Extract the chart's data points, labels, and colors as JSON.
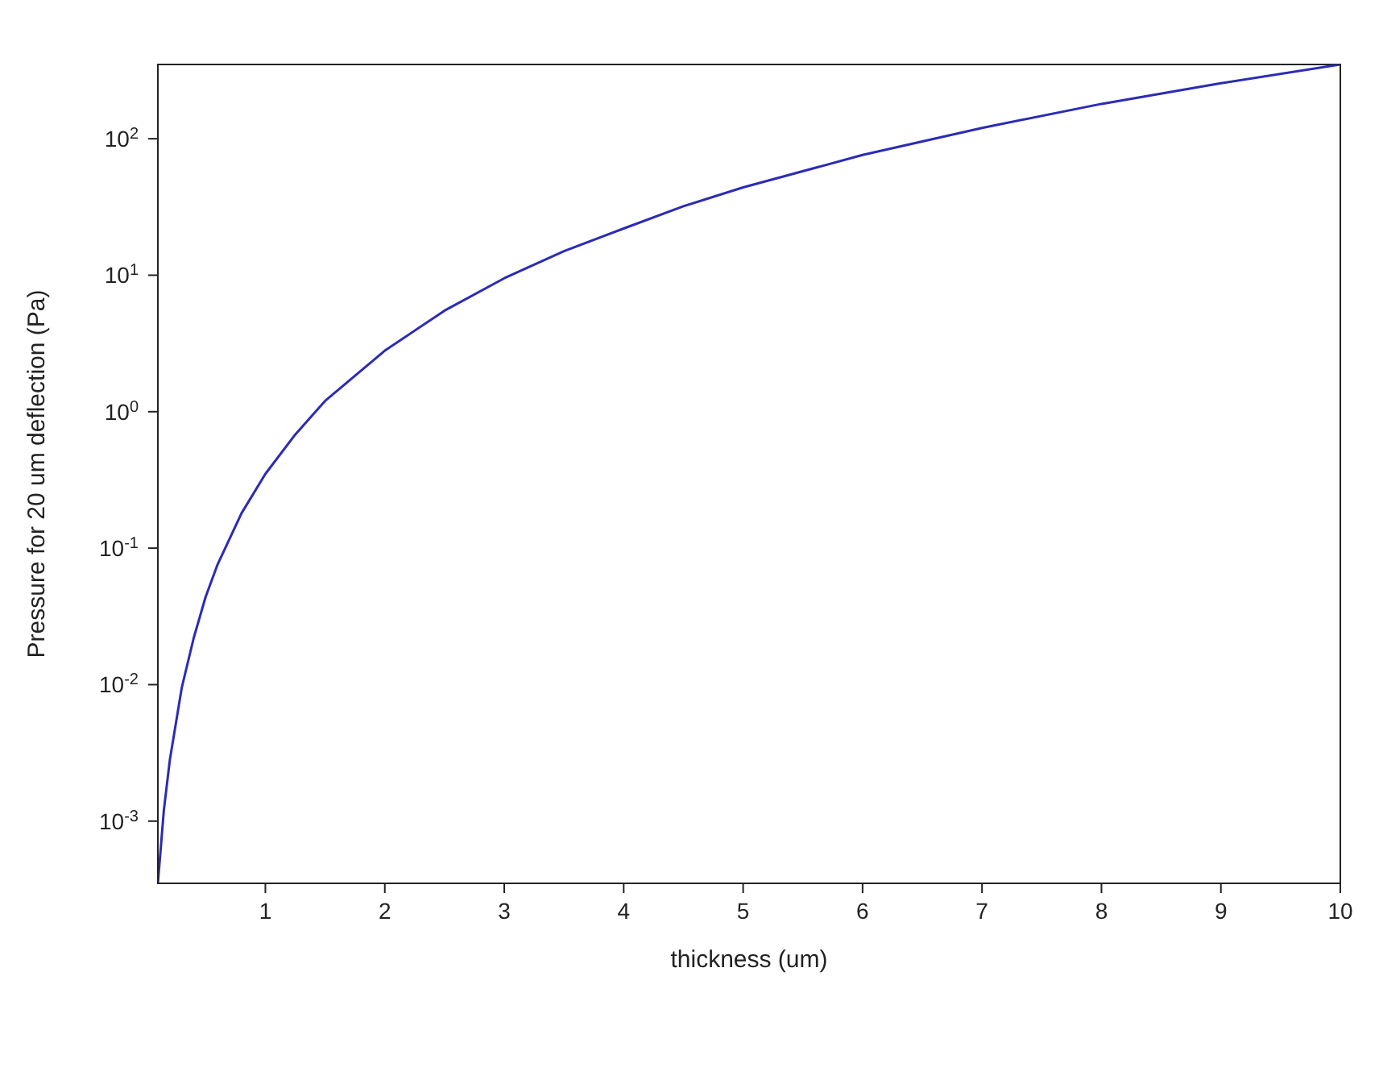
{
  "chart_data": {
    "type": "line",
    "xlabel": "thickness (um)",
    "ylabel": "Pressure for 20 um deflection (Pa)",
    "log": "y",
    "grid": false,
    "marker": "none",
    "line_style": "solid",
    "x": [
      0.1,
      0.15,
      0.2,
      0.3,
      0.4,
      0.5,
      0.6,
      0.8,
      1,
      1.25,
      1.5,
      2,
      2.5,
      3,
      3.5,
      4,
      4.5,
      5,
      6,
      7,
      8,
      9,
      10
    ],
    "series": [
      {
        "color": "#2b2bb8",
        "values": [
          0.00035,
          0.0012,
          0.0028,
          0.0095,
          0.022,
          0.044,
          0.076,
          0.18,
          0.35,
          0.68,
          1.2,
          2.8,
          5.5,
          9.5,
          15,
          22,
          32,
          44,
          76,
          120,
          180,
          255,
          350
        ]
      }
    ],
    "xlim": [
      0.1,
      10
    ],
    "xticks": [
      1,
      2,
      3,
      4,
      5,
      6,
      7,
      8,
      9,
      10
    ],
    "ylim": [
      0.00035,
      350
    ],
    "yticks": [
      {
        "value": 0.001,
        "label": "10$^{-3}$"
      },
      {
        "value": 0.01,
        "label": "10$^{-2}$"
      },
      {
        "value": 0.1,
        "label": "10$^{-1}$"
      },
      {
        "value": 1,
        "label": "10$^{0}$"
      },
      {
        "value": 10,
        "label": "10$^{1}$"
      },
      {
        "value": 100,
        "label": "10$^{2}$"
      }
    ]
  }
}
